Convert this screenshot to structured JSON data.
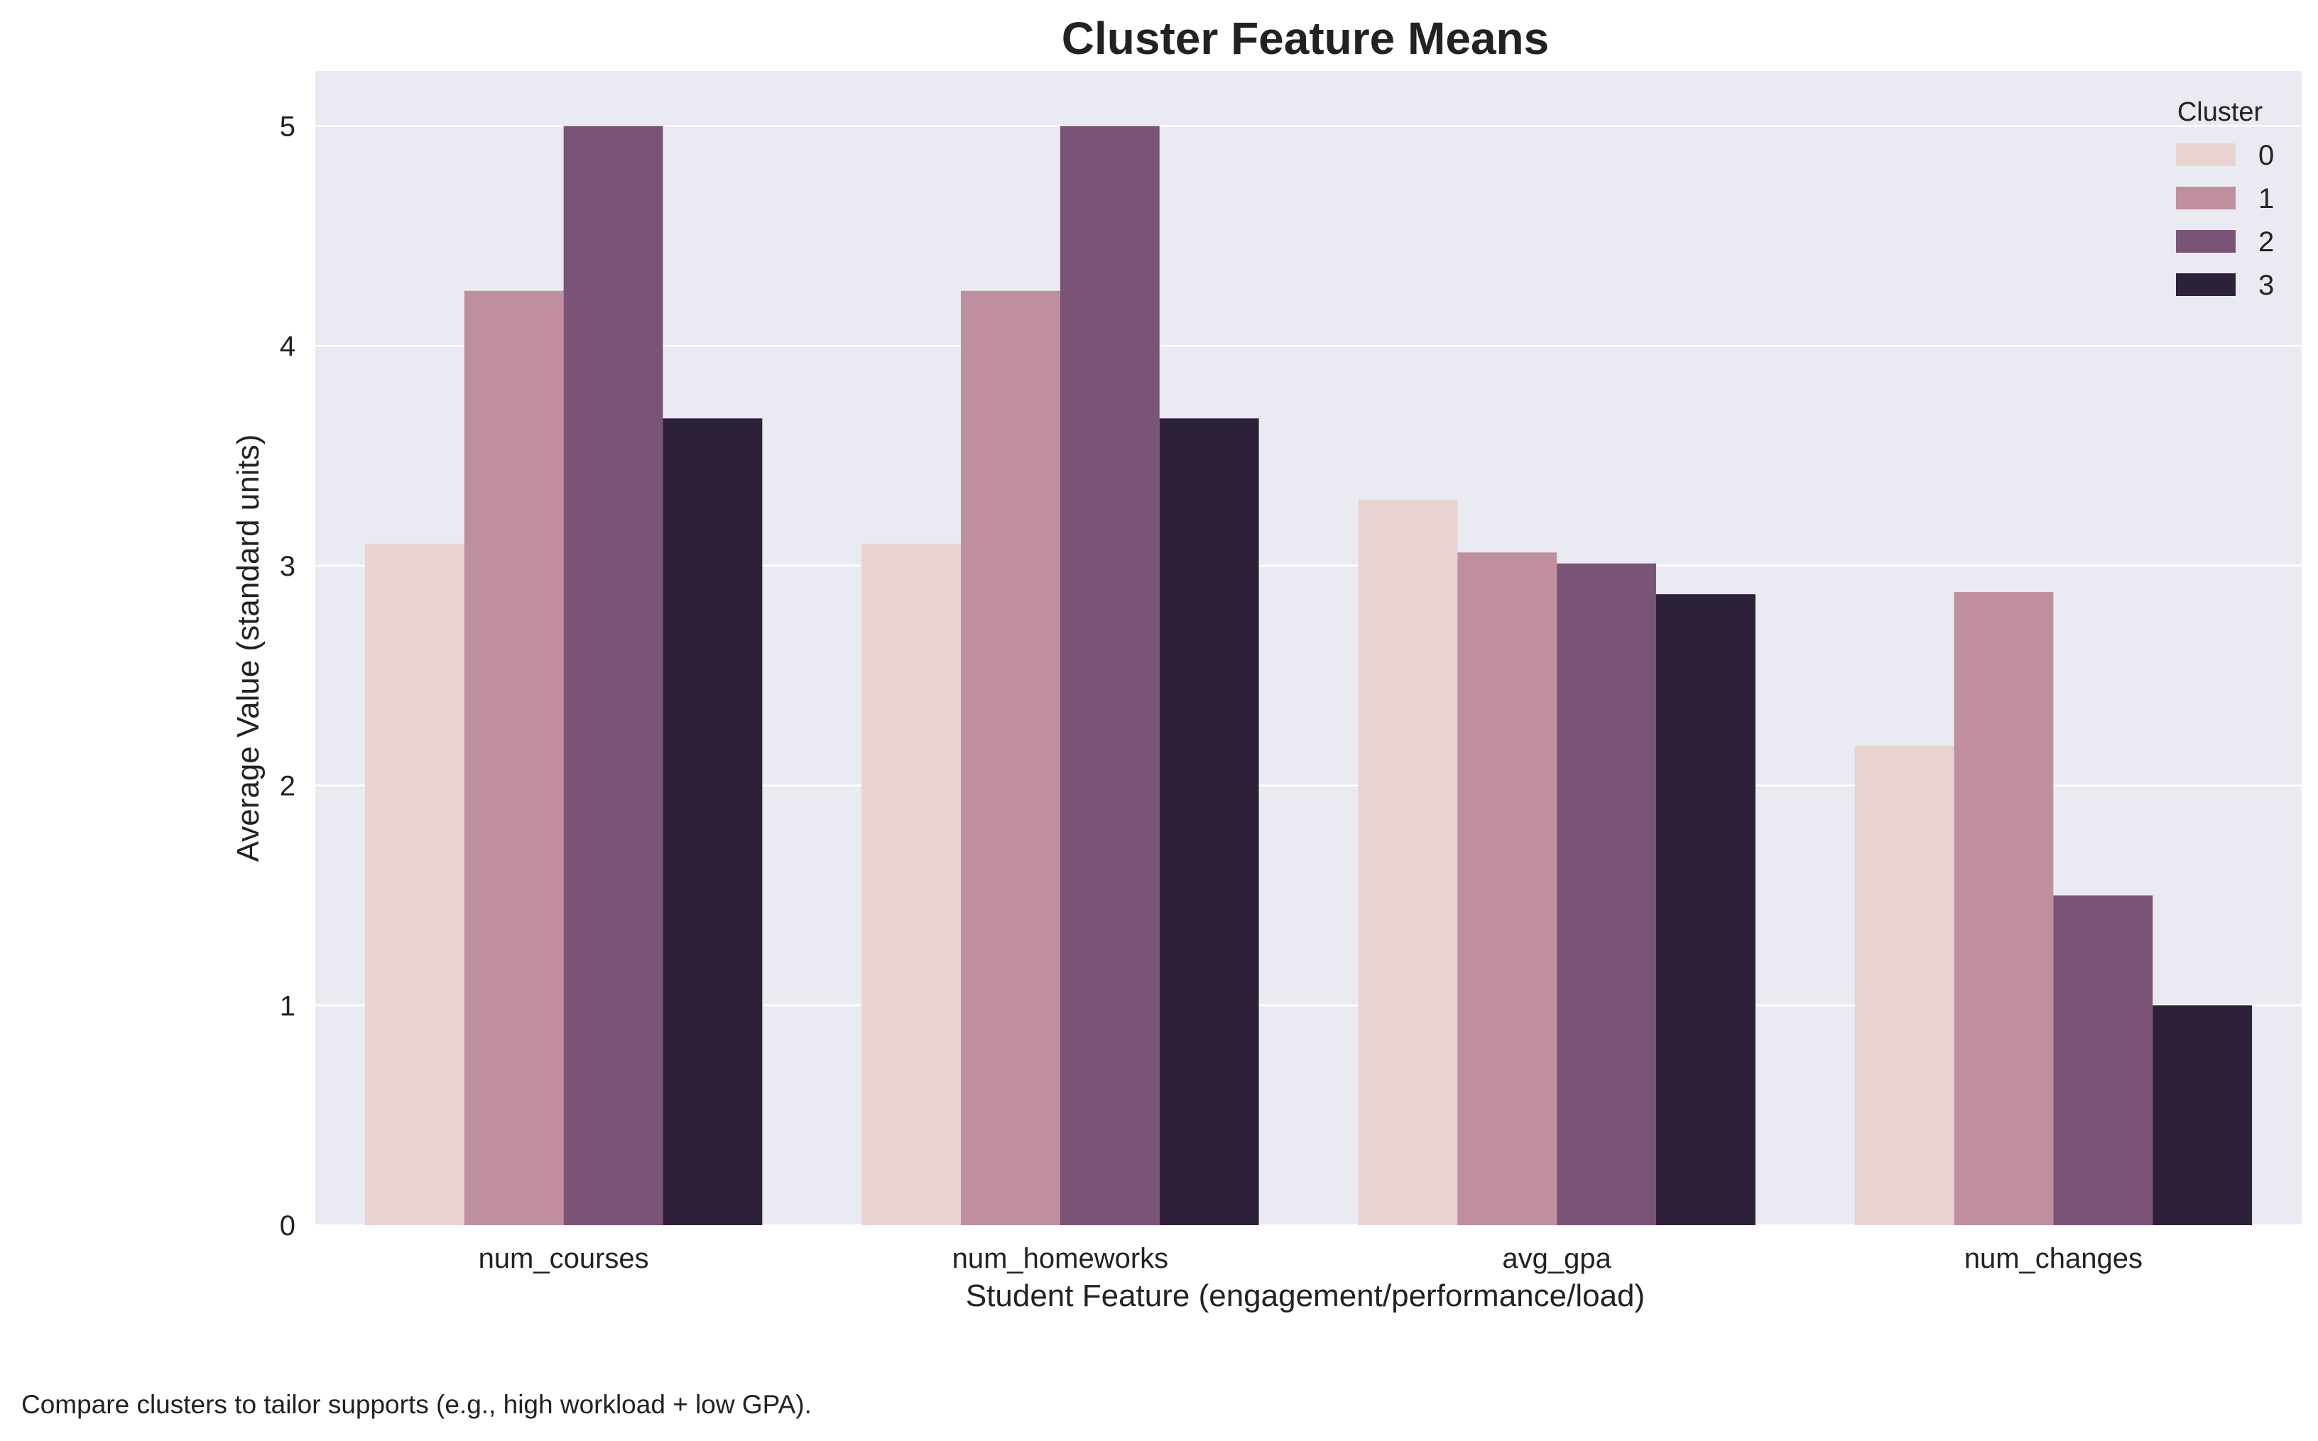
{
  "chart_data": {
    "type": "bar",
    "title": "Cluster Feature Means",
    "xlabel": "Student Feature (engagement/performance/load)",
    "ylabel": "Average Value (standard units)",
    "categories": [
      "num_courses",
      "num_homeworks",
      "avg_gpa",
      "num_changes"
    ],
    "series": [
      {
        "name": "0",
        "color": "#e8d3d1",
        "values": [
          3.1,
          3.1,
          3.3,
          2.18
        ]
      },
      {
        "name": "1",
        "color": "#c08f9f",
        "values": [
          4.25,
          4.25,
          3.06,
          2.88
        ]
      },
      {
        "name": "2",
        "color": "#7a5476",
        "values": [
          5.0,
          5.0,
          3.01,
          1.5
        ]
      },
      {
        "name": "3",
        "color": "#2d2139",
        "values": [
          3.67,
          3.67,
          2.87,
          1.0
        ]
      }
    ],
    "ylim": [
      0,
      5.25
    ],
    "yticks": [
      0,
      1,
      2,
      3,
      4,
      5
    ],
    "legend_title": "Cluster",
    "legend_position": "top-right",
    "grid": true,
    "background": "#eaeaf2",
    "grid_color": "#ffffff"
  },
  "caption": "Compare clusters to tailor supports (e.g., high workload + low GPA)."
}
